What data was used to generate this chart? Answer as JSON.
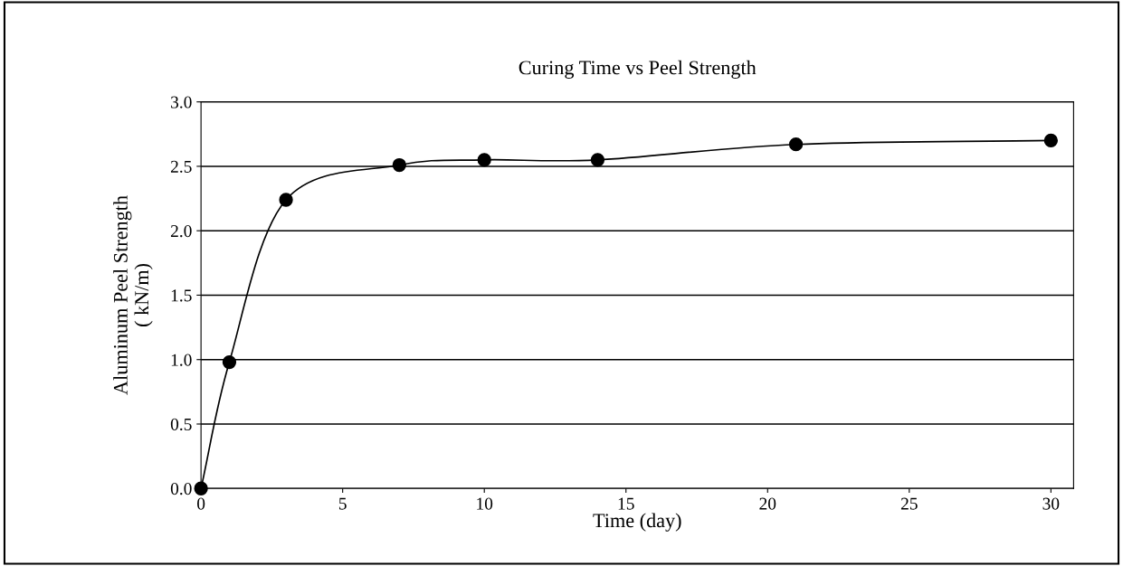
{
  "chart_data": {
    "type": "line",
    "title": "Curing Time vs Peel Strength",
    "xlabel": "Time (day)",
    "ylabel": "Aluminum Peel Strength\n( kN/m)",
    "x": [
      0,
      1,
      3,
      7,
      10,
      14,
      21,
      30
    ],
    "series": [
      {
        "color": "#000000",
        "values": [
          0.0,
          0.98,
          2.24,
          2.51,
          2.55,
          2.55,
          2.67,
          2.7
        ]
      }
    ],
    "xlim": [
      0,
      30.8
    ],
    "xticks": [
      0,
      5,
      10,
      15,
      20,
      25,
      30
    ],
    "ylim": [
      0,
      3.0
    ],
    "yticks": [
      {
        "value": 0,
        "label": "0.0"
      },
      {
        "value": 0.5,
        "label": "0.5"
      },
      {
        "value": 1.0,
        "label": "1.0"
      },
      {
        "value": 1.5,
        "label": "1.5"
      },
      {
        "value": 2.0,
        "label": "2.0"
      },
      {
        "value": 2.5,
        "label": "2.5"
      },
      {
        "value": 3.0,
        "label": "3.0"
      }
    ],
    "grid": "y",
    "marker": "circle",
    "line_style": "solid",
    "legend": false
  }
}
